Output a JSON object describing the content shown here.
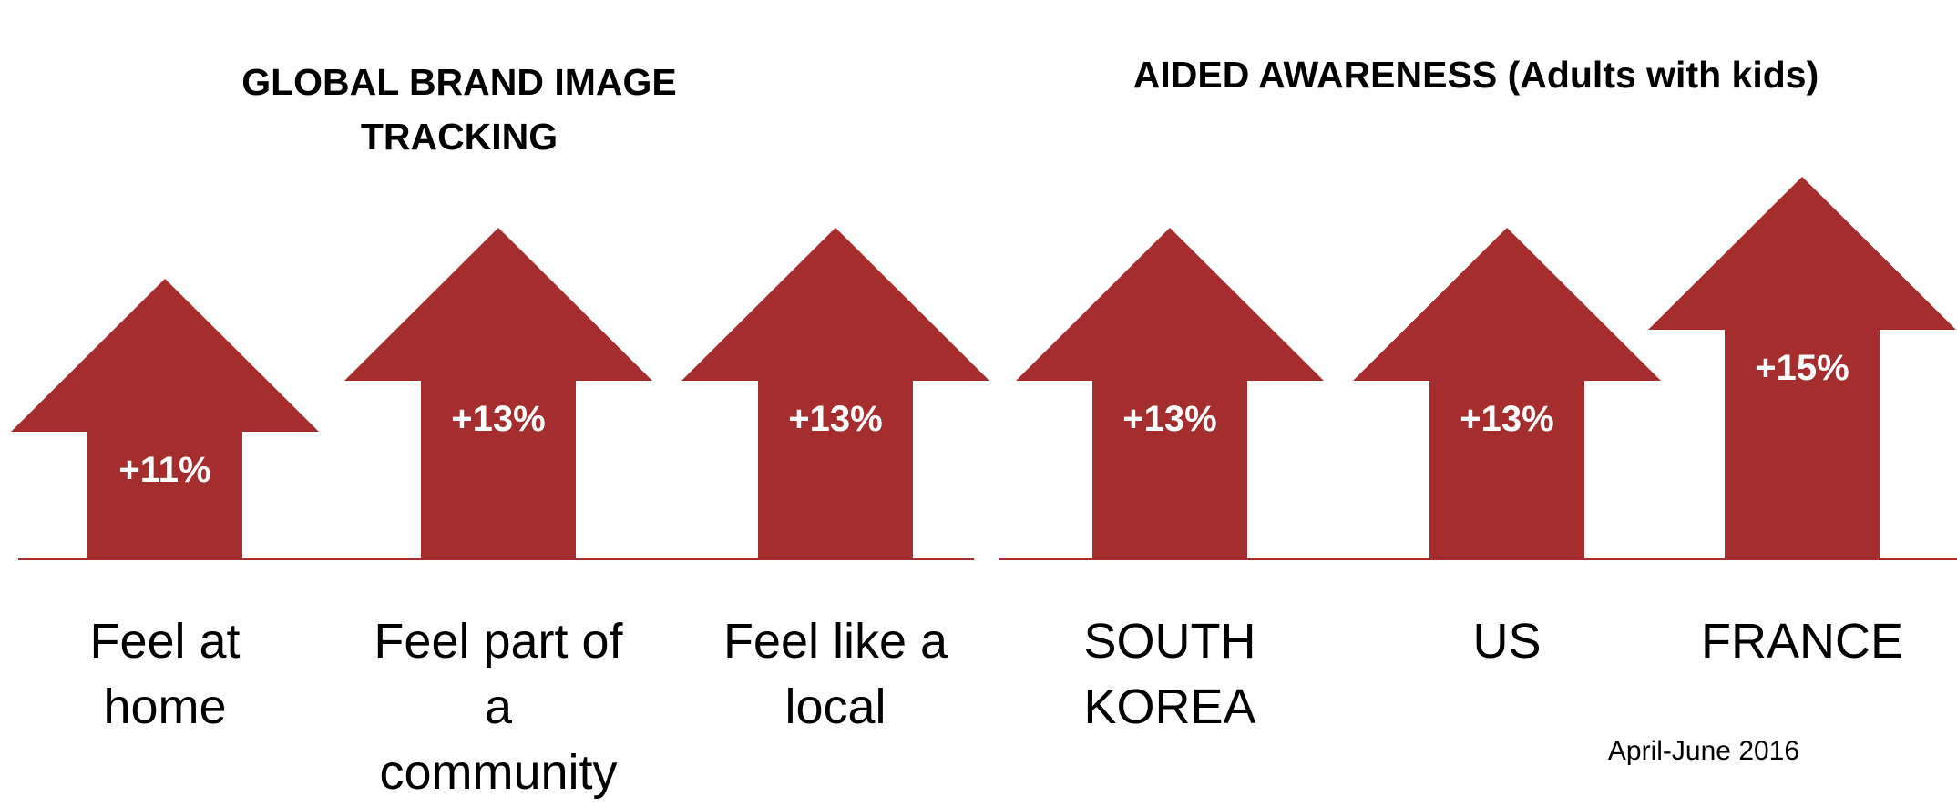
{
  "chart_data": [
    {
      "type": "arrow",
      "title": "GLOBAL BRAND IMAGE TRACKING",
      "categories": [
        "Feel at home",
        "Feel part of a community",
        "Feel like a local"
      ],
      "values": [
        11,
        13,
        13
      ],
      "value_labels": [
        "+11%",
        "+13%",
        "+13%"
      ],
      "color": "#a52d2d"
    },
    {
      "type": "arrow",
      "title": "AIDED AWARENESS (Adults with kids)",
      "categories": [
        "SOUTH KOREA",
        "US",
        "FRANCE"
      ],
      "values": [
        13,
        13,
        15
      ],
      "value_labels": [
        "+13%",
        "+13%",
        "+15%"
      ],
      "color": "#a52d2d",
      "note": "April-June 2016"
    }
  ]
}
